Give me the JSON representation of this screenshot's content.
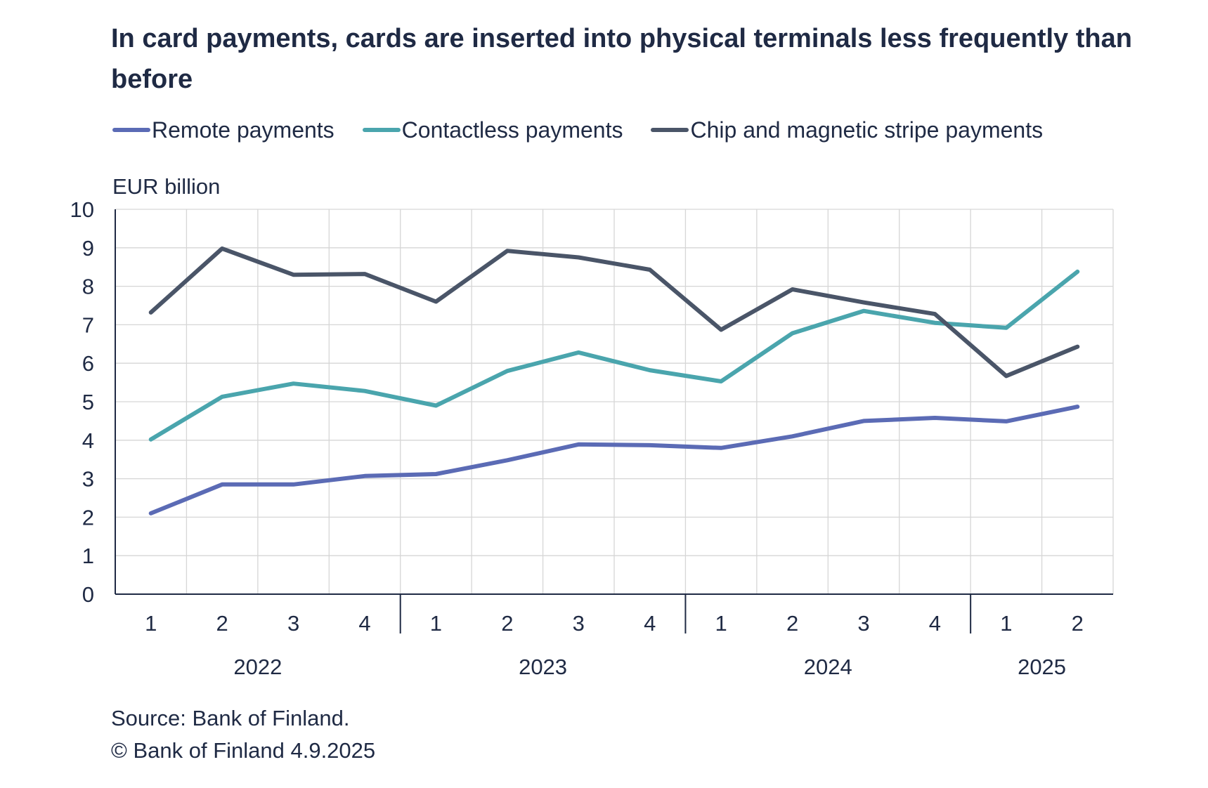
{
  "chart_data": {
    "type": "line",
    "title": "In card payments, cards are inserted into physical terminals less frequently than before",
    "ylabel": "EUR billion",
    "ylim": [
      0,
      10
    ],
    "yticks": [
      0,
      1,
      2,
      3,
      4,
      5,
      6,
      7,
      8,
      9,
      10
    ],
    "grid": true,
    "legend_position": "top",
    "categories": [
      "1",
      "2",
      "3",
      "4",
      "1",
      "2",
      "3",
      "4",
      "1",
      "2",
      "3",
      "4",
      "1",
      "2"
    ],
    "year_groups": [
      {
        "label": "2022",
        "count": 4
      },
      {
        "label": "2023",
        "count": 4
      },
      {
        "label": "2024",
        "count": 4
      },
      {
        "label": "2025",
        "count": 2
      }
    ],
    "series": [
      {
        "name": "Remote payments",
        "color": "#5b6bb5",
        "values": [
          2.1,
          2.85,
          2.85,
          3.07,
          3.12,
          3.48,
          3.89,
          3.87,
          3.8,
          4.1,
          4.5,
          4.58,
          4.49,
          4.87
        ]
      },
      {
        "name": "Contactless payments",
        "color": "#4aa5ad",
        "values": [
          4.02,
          5.13,
          5.47,
          5.28,
          4.9,
          5.8,
          6.28,
          5.82,
          5.53,
          6.78,
          7.36,
          7.05,
          6.92,
          8.38
        ]
      },
      {
        "name": "Chip and magnetic stripe payments",
        "color": "#4a5568",
        "values": [
          7.32,
          8.98,
          8.3,
          8.32,
          7.6,
          8.92,
          8.75,
          8.43,
          6.87,
          7.92,
          7.58,
          7.28,
          5.67,
          6.43
        ]
      }
    ],
    "source": "Source: Bank of Finland.",
    "copyright": "© Bank of Finland 4.9.2025"
  }
}
